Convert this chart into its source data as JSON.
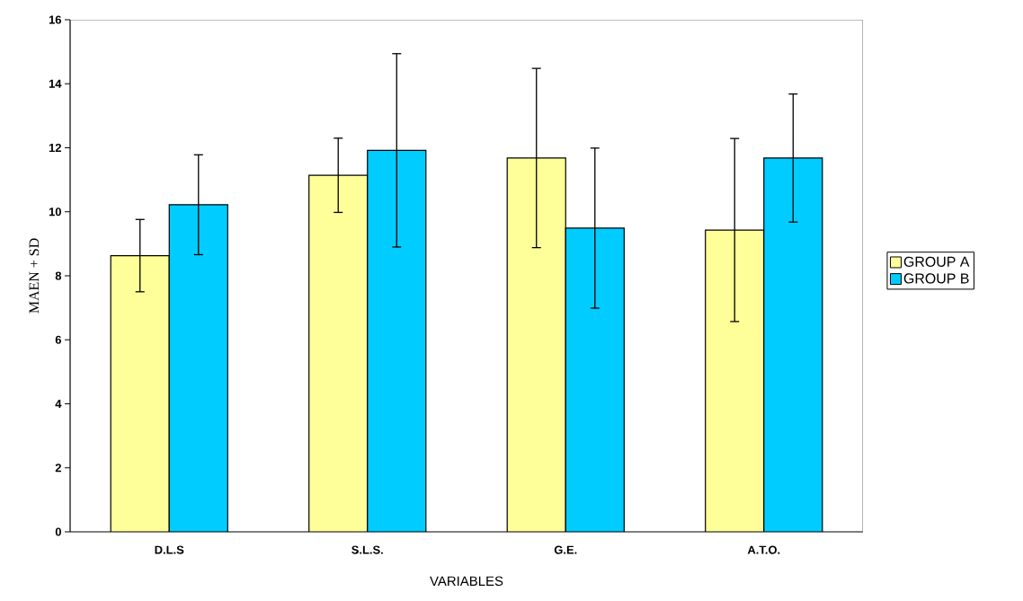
{
  "chart_data": {
    "type": "bar",
    "xlabel": "VARIABLES",
    "ylabel": "MAEN + SD",
    "categories": [
      "D.L.S",
      "S.L.S.",
      "G.E.",
      "A.T.O."
    ],
    "series": [
      {
        "name": "GROUP A",
        "color": "#ffff99",
        "values": [
          8.63,
          11.14,
          11.68,
          9.43
        ],
        "errors": [
          1.13,
          1.16,
          2.8,
          2.86
        ]
      },
      {
        "name": "GROUP B",
        "color": "#00ccff",
        "values": [
          10.22,
          11.92,
          9.49,
          11.68
        ],
        "errors": [
          1.56,
          3.02,
          2.5,
          2.0
        ]
      }
    ],
    "ylim": [
      0,
      16
    ],
    "yticks": [
      0,
      2,
      4,
      6,
      8,
      10,
      12,
      14,
      16
    ],
    "grid": false,
    "legend": "right"
  }
}
